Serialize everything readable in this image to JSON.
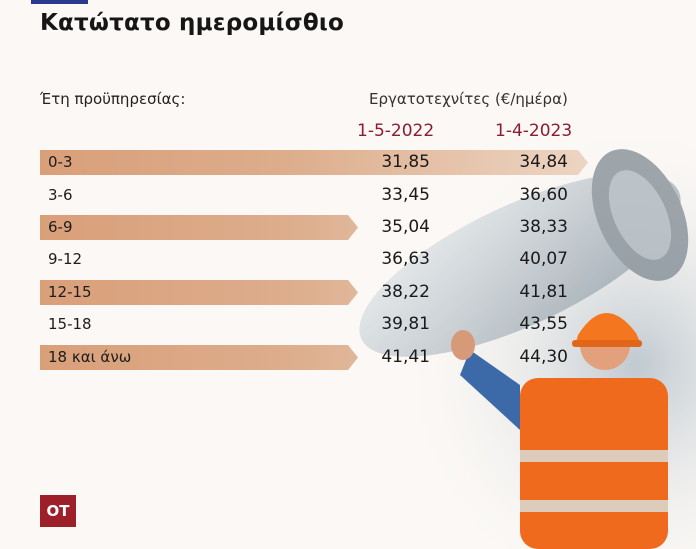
{
  "title": "Κατώτατο ημερομίσθιο",
  "header": {
    "category_label": "Έτη προϋπηρεσίας:",
    "group_label": "Εργατοτεχνίτες (€/ημέρα)"
  },
  "logo": "OT",
  "chart_data": {
    "type": "table",
    "title": "Κατώτατο ημερομίσθιο",
    "categories": [
      "0-3",
      "3-6",
      "6-9",
      "9-12",
      "12-15",
      "15-18",
      "18 και άνω"
    ],
    "series": [
      {
        "name": "1-5-2022",
        "values": [
          "31,85",
          "33,45",
          "35,04",
          "36,63",
          "38,22",
          "39,81",
          "41,41"
        ]
      },
      {
        "name": "1-4-2023",
        "values": [
          "34,84",
          "36,60",
          "38,33",
          "40,07",
          "41,81",
          "43,55",
          "44,30"
        ]
      }
    ]
  }
}
